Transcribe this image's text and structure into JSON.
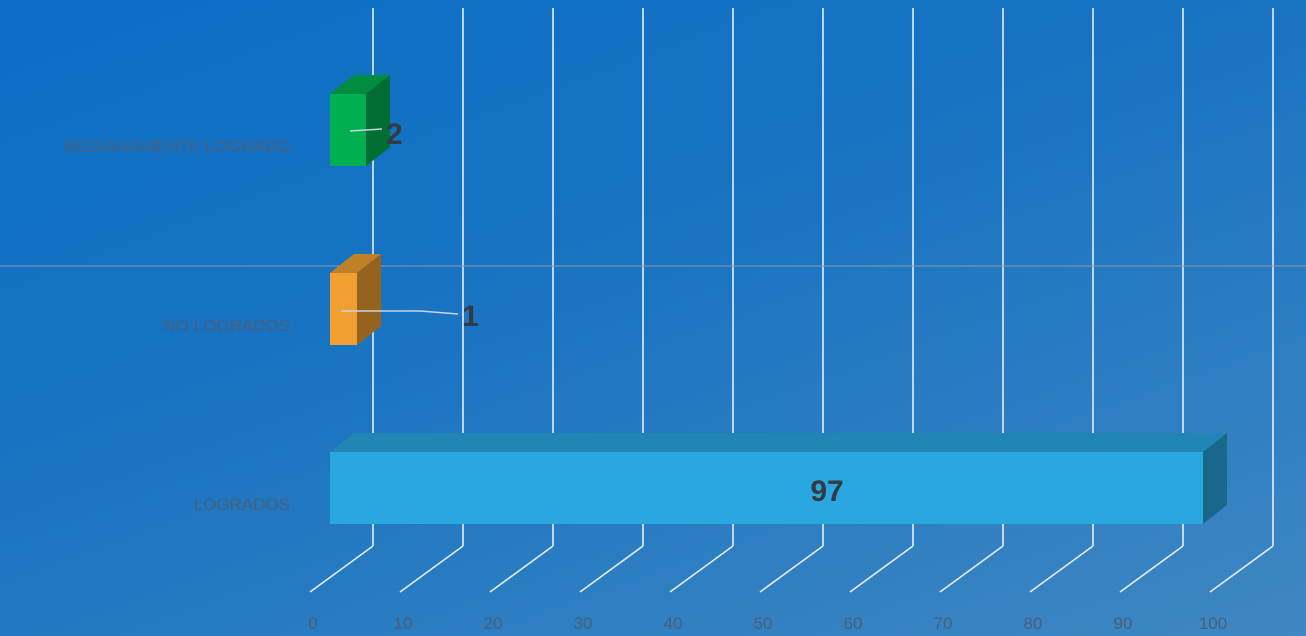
{
  "chart_data": {
    "type": "bar",
    "orientation": "horizontal",
    "style": "3d",
    "categories": [
      "MEDIANAMENTE LOGRADO",
      "NO LOGRADOS",
      "LOGRADOS"
    ],
    "values": [
      2,
      1,
      97
    ],
    "data_labels": [
      "2",
      "1",
      "97"
    ],
    "bar_colors": [
      "#00b050",
      "#f0a030",
      "#29a8e0"
    ],
    "xlim": [
      0,
      100
    ],
    "x_ticks": [
      0,
      10,
      20,
      30,
      40,
      50,
      60,
      70,
      80,
      90,
      100
    ],
    "x_tick_labels": [
      "0",
      "10",
      "20",
      "30",
      "40",
      "50",
      "60",
      "70",
      "80",
      "90",
      "100"
    ],
    "grid": true,
    "legend": "none",
    "title": "",
    "xlabel": "",
    "ylabel": ""
  }
}
